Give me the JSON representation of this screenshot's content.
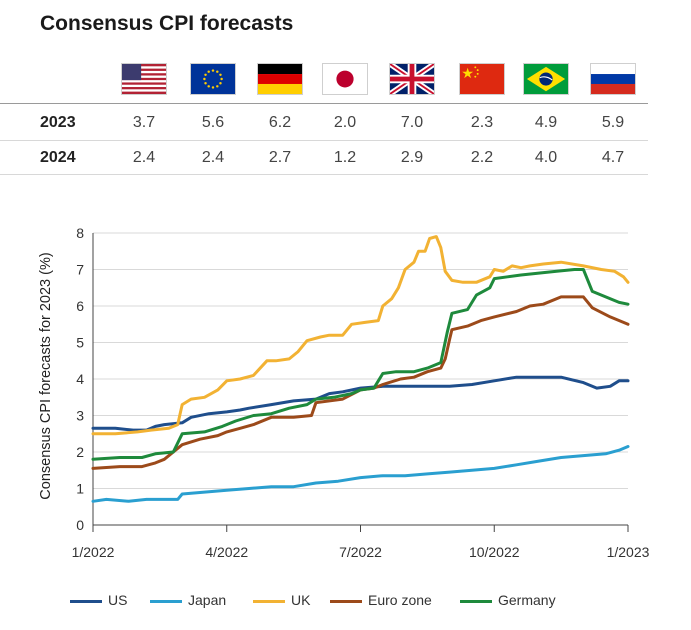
{
  "title": "Consensus CPI forecasts",
  "table": {
    "columns": [
      {
        "flag": "us-flag-icon"
      },
      {
        "flag": "eu-flag-icon"
      },
      {
        "flag": "germany-flag-icon"
      },
      {
        "flag": "japan-flag-icon"
      },
      {
        "flag": "uk-flag-icon"
      },
      {
        "flag": "china-flag-icon"
      },
      {
        "flag": "brazil-flag-icon"
      },
      {
        "flag": "russia-flag-icon"
      }
    ],
    "rows": [
      {
        "label": "2023",
        "values": [
          "3.7",
          "5.6",
          "6.2",
          "2.0",
          "7.0",
          "2.3",
          "4.9",
          "5.9"
        ]
      },
      {
        "label": "2024",
        "values": [
          "2.4",
          "2.4",
          "2.7",
          "1.2",
          "2.9",
          "2.2",
          "4.0",
          "4.7"
        ]
      }
    ]
  },
  "chart_data": {
    "type": "line",
    "ylabel": "Consensus CPI forecasts for 2023 (%)",
    "xlabel": "",
    "ylim": [
      0,
      8
    ],
    "yticks": [
      "0",
      "1",
      "2",
      "3",
      "4",
      "5",
      "6",
      "7",
      "8"
    ],
    "xticks": [
      "1/2022",
      "4/2022",
      "7/2022",
      "10/2022",
      "1/2023"
    ],
    "xlim": [
      0,
      12
    ],
    "grid": true,
    "legend_position": "bottom",
    "series": [
      {
        "name": "US",
        "color": "#1f4e8c",
        "points": [
          [
            0,
            2.65
          ],
          [
            0.5,
            2.65
          ],
          [
            0.9,
            2.6
          ],
          [
            1.2,
            2.6
          ],
          [
            1.4,
            2.7
          ],
          [
            1.6,
            2.75
          ],
          [
            2.0,
            2.8
          ],
          [
            2.2,
            2.95
          ],
          [
            2.6,
            3.05
          ],
          [
            3.0,
            3.1
          ],
          [
            3.3,
            3.15
          ],
          [
            3.5,
            3.2
          ],
          [
            4.0,
            3.3
          ],
          [
            4.5,
            3.4
          ],
          [
            5.0,
            3.45
          ],
          [
            5.3,
            3.6
          ],
          [
            5.6,
            3.65
          ],
          [
            6.0,
            3.75
          ],
          [
            6.5,
            3.8
          ],
          [
            7.0,
            3.8
          ],
          [
            7.5,
            3.8
          ],
          [
            8.0,
            3.8
          ],
          [
            8.5,
            3.85
          ],
          [
            9.0,
            3.95
          ],
          [
            9.5,
            4.05
          ],
          [
            10.0,
            4.05
          ],
          [
            10.5,
            4.05
          ],
          [
            11.0,
            3.9
          ],
          [
            11.3,
            3.75
          ],
          [
            11.6,
            3.8
          ],
          [
            11.8,
            3.95
          ],
          [
            12.0,
            3.95
          ]
        ]
      },
      {
        "name": "Japan",
        "color": "#2a9fd0",
        "points": [
          [
            0,
            0.65
          ],
          [
            0.3,
            0.7
          ],
          [
            0.8,
            0.65
          ],
          [
            1.2,
            0.7
          ],
          [
            1.9,
            0.7
          ],
          [
            2.0,
            0.85
          ],
          [
            2.5,
            0.9
          ],
          [
            3.0,
            0.95
          ],
          [
            3.5,
            1.0
          ],
          [
            4.0,
            1.05
          ],
          [
            4.5,
            1.05
          ],
          [
            5.0,
            1.15
          ],
          [
            5.5,
            1.2
          ],
          [
            6.0,
            1.3
          ],
          [
            6.5,
            1.35
          ],
          [
            7.0,
            1.35
          ],
          [
            7.5,
            1.4
          ],
          [
            8.0,
            1.45
          ],
          [
            8.5,
            1.5
          ],
          [
            9.0,
            1.55
          ],
          [
            9.5,
            1.65
          ],
          [
            10.0,
            1.75
          ],
          [
            10.5,
            1.85
          ],
          [
            11.0,
            1.9
          ],
          [
            11.5,
            1.95
          ],
          [
            11.8,
            2.05
          ],
          [
            12.0,
            2.15
          ]
        ]
      },
      {
        "name": "UK",
        "color": "#f2b233",
        "points": [
          [
            0,
            2.5
          ],
          [
            0.5,
            2.5
          ],
          [
            1.0,
            2.55
          ],
          [
            1.3,
            2.6
          ],
          [
            1.7,
            2.65
          ],
          [
            1.9,
            2.75
          ],
          [
            2.0,
            3.3
          ],
          [
            2.2,
            3.45
          ],
          [
            2.5,
            3.5
          ],
          [
            2.8,
            3.7
          ],
          [
            3.0,
            3.95
          ],
          [
            3.3,
            4.0
          ],
          [
            3.6,
            4.1
          ],
          [
            3.9,
            4.5
          ],
          [
            4.1,
            4.5
          ],
          [
            4.4,
            4.55
          ],
          [
            4.6,
            4.75
          ],
          [
            4.8,
            5.05
          ],
          [
            5.1,
            5.15
          ],
          [
            5.3,
            5.2
          ],
          [
            5.6,
            5.2
          ],
          [
            5.8,
            5.5
          ],
          [
            6.1,
            5.55
          ],
          [
            6.4,
            5.6
          ],
          [
            6.5,
            6.0
          ],
          [
            6.7,
            6.2
          ],
          [
            6.85,
            6.5
          ],
          [
            7.0,
            7.0
          ],
          [
            7.2,
            7.2
          ],
          [
            7.3,
            7.5
          ],
          [
            7.45,
            7.5
          ],
          [
            7.55,
            7.85
          ],
          [
            7.7,
            7.9
          ],
          [
            7.8,
            7.6
          ],
          [
            7.9,
            6.95
          ],
          [
            8.05,
            6.7
          ],
          [
            8.3,
            6.65
          ],
          [
            8.6,
            6.65
          ],
          [
            8.9,
            6.8
          ],
          [
            9.0,
            7.0
          ],
          [
            9.2,
            6.95
          ],
          [
            9.4,
            7.1
          ],
          [
            9.6,
            7.05
          ],
          [
            9.8,
            7.1
          ],
          [
            10.1,
            7.15
          ],
          [
            10.5,
            7.2
          ],
          [
            11.0,
            7.1
          ],
          [
            11.4,
            7.0
          ],
          [
            11.7,
            6.95
          ],
          [
            11.9,
            6.8
          ],
          [
            12.0,
            6.65
          ]
        ]
      },
      {
        "name": "Euro zone",
        "color": "#9c4a1a",
        "points": [
          [
            0,
            1.55
          ],
          [
            0.6,
            1.6
          ],
          [
            1.1,
            1.6
          ],
          [
            1.4,
            1.7
          ],
          [
            1.6,
            1.8
          ],
          [
            2.0,
            2.2
          ],
          [
            2.4,
            2.35
          ],
          [
            2.8,
            2.45
          ],
          [
            3.0,
            2.55
          ],
          [
            3.3,
            2.65
          ],
          [
            3.6,
            2.75
          ],
          [
            4.0,
            2.95
          ],
          [
            4.5,
            2.95
          ],
          [
            4.9,
            3.0
          ],
          [
            5.0,
            3.35
          ],
          [
            5.3,
            3.4
          ],
          [
            5.6,
            3.45
          ],
          [
            6.0,
            3.7
          ],
          [
            6.3,
            3.75
          ],
          [
            6.5,
            3.85
          ],
          [
            6.9,
            4.0
          ],
          [
            7.2,
            4.05
          ],
          [
            7.5,
            4.2
          ],
          [
            7.8,
            4.3
          ],
          [
            7.9,
            4.55
          ],
          [
            8.0,
            5.1
          ],
          [
            8.05,
            5.35
          ],
          [
            8.4,
            5.45
          ],
          [
            8.7,
            5.6
          ],
          [
            9.0,
            5.7
          ],
          [
            9.5,
            5.85
          ],
          [
            9.8,
            6.0
          ],
          [
            10.1,
            6.05
          ],
          [
            10.5,
            6.25
          ],
          [
            11.0,
            6.25
          ],
          [
            11.2,
            5.95
          ],
          [
            11.6,
            5.7
          ],
          [
            11.9,
            5.55
          ],
          [
            12.0,
            5.5
          ]
        ]
      },
      {
        "name": "Germany",
        "color": "#1e8a3c",
        "points": [
          [
            0,
            1.8
          ],
          [
            0.6,
            1.85
          ],
          [
            1.1,
            1.85
          ],
          [
            1.4,
            1.95
          ],
          [
            1.8,
            2.0
          ],
          [
            2.0,
            2.5
          ],
          [
            2.5,
            2.55
          ],
          [
            2.9,
            2.7
          ],
          [
            3.2,
            2.85
          ],
          [
            3.6,
            3.0
          ],
          [
            4.0,
            3.05
          ],
          [
            4.4,
            3.2
          ],
          [
            4.8,
            3.3
          ],
          [
            5.0,
            3.45
          ],
          [
            5.4,
            3.5
          ],
          [
            5.8,
            3.6
          ],
          [
            6.0,
            3.7
          ],
          [
            6.3,
            3.75
          ],
          [
            6.5,
            4.15
          ],
          [
            6.8,
            4.2
          ],
          [
            7.2,
            4.2
          ],
          [
            7.5,
            4.3
          ],
          [
            7.8,
            4.45
          ],
          [
            7.95,
            5.3
          ],
          [
            8.05,
            5.8
          ],
          [
            8.4,
            5.9
          ],
          [
            8.6,
            6.3
          ],
          [
            8.9,
            6.5
          ],
          [
            9.0,
            6.75
          ],
          [
            9.3,
            6.8
          ],
          [
            9.6,
            6.85
          ],
          [
            10.0,
            6.9
          ],
          [
            10.4,
            6.95
          ],
          [
            10.8,
            7.0
          ],
          [
            11.0,
            7.0
          ],
          [
            11.2,
            6.4
          ],
          [
            11.5,
            6.25
          ],
          [
            11.8,
            6.1
          ],
          [
            12.0,
            6.05
          ]
        ]
      }
    ]
  },
  "legend": [
    {
      "label": "US",
      "color": "#1f4e8c"
    },
    {
      "label": "Japan",
      "color": "#2a9fd0"
    },
    {
      "label": "UK",
      "color": "#f2b233"
    },
    {
      "label": "Euro zone",
      "color": "#9c4a1a"
    },
    {
      "label": "Germany",
      "color": "#1e8a3c"
    }
  ]
}
